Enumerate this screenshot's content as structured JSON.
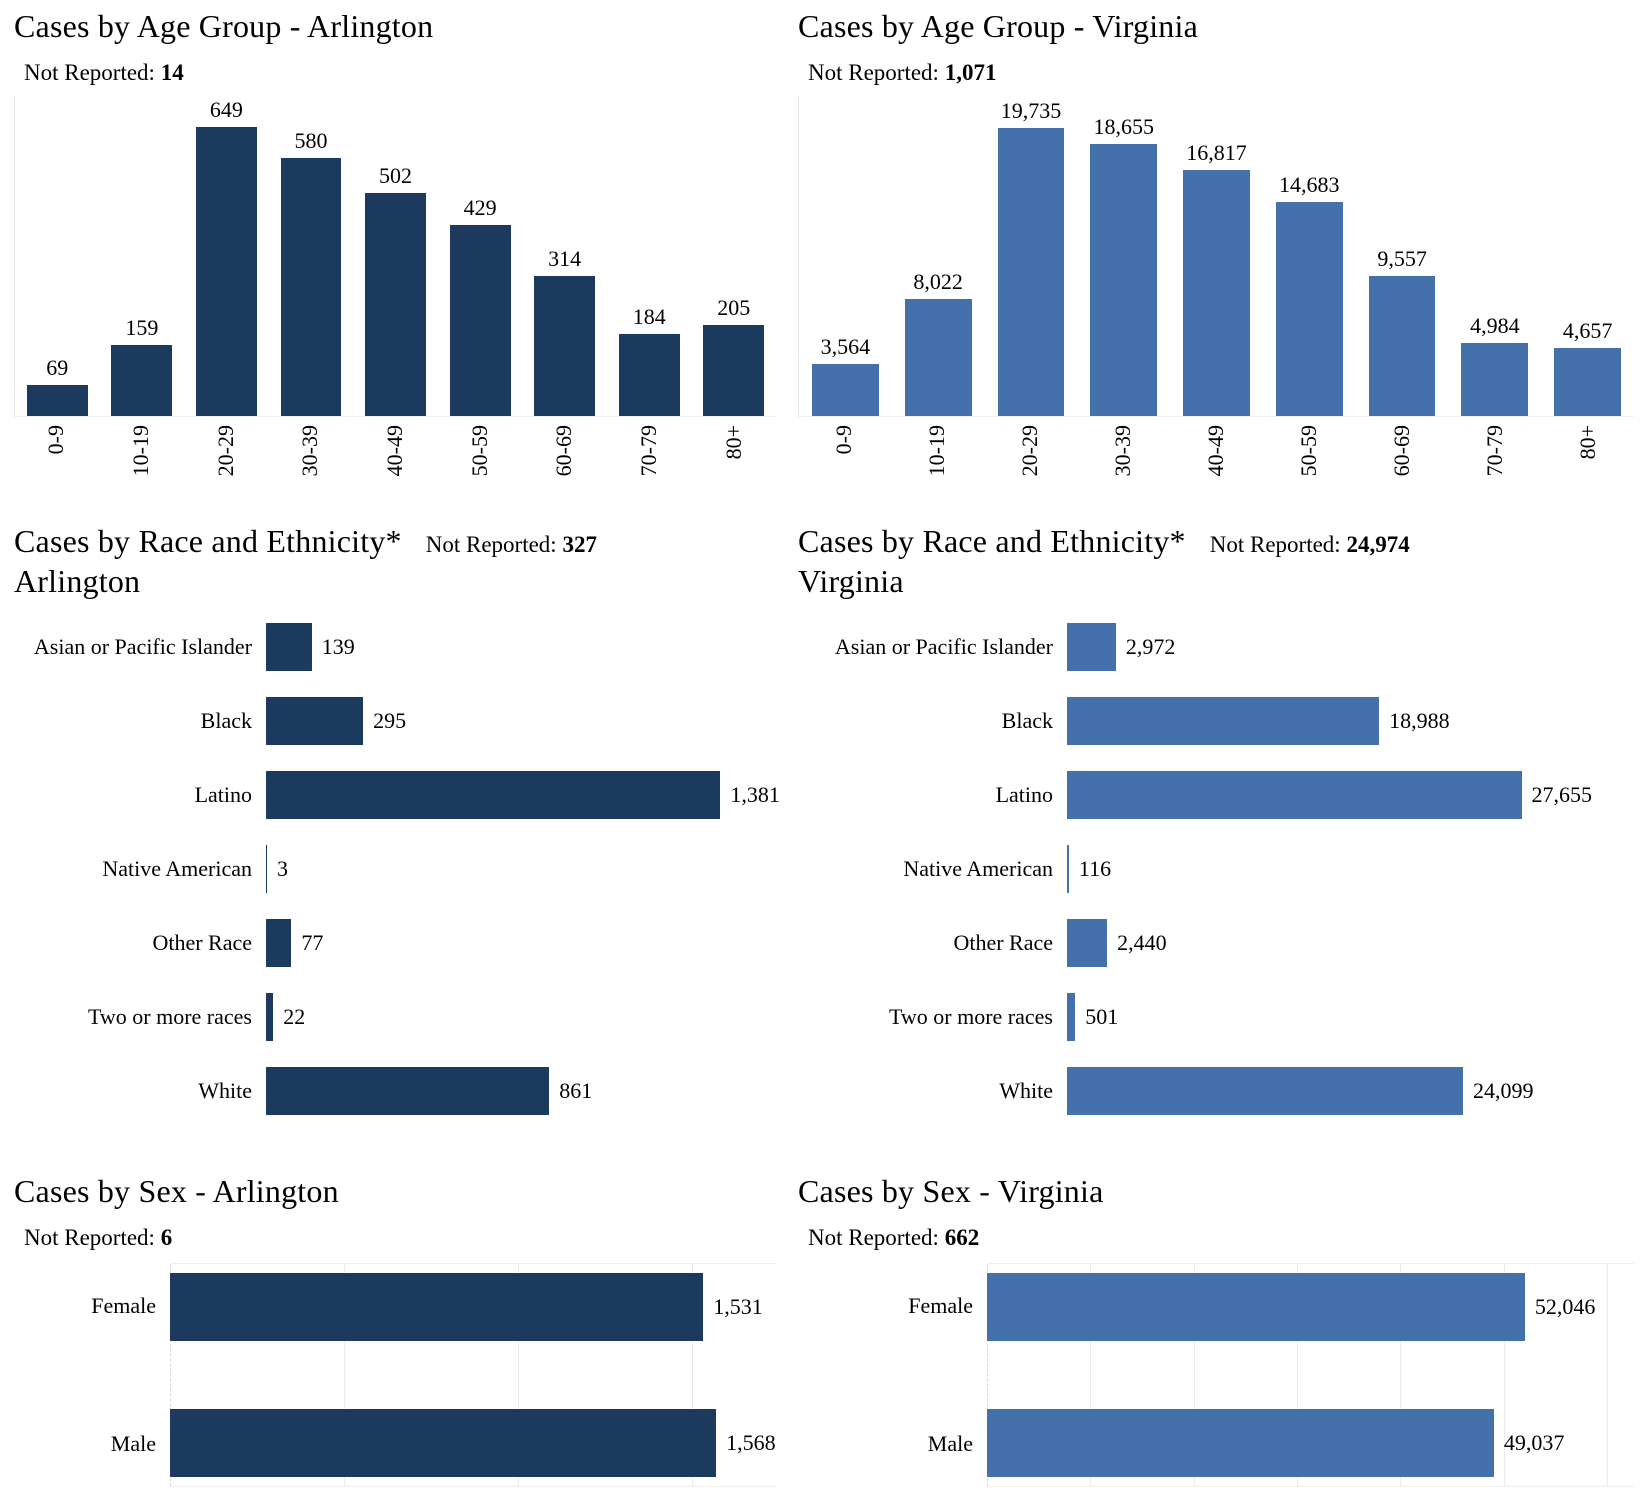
{
  "colors": {
    "arlington_navy": "#1b3a5e",
    "virginia_blue": "#4470ac"
  },
  "chart_data": [
    {
      "type": "bar",
      "orientation": "vertical",
      "title": "Cases by Age Group - Arlington",
      "not_reported_label": "Not Reported:",
      "not_reported_value": "14",
      "bar_color": "#1b3a5e",
      "grid": false,
      "categories": [
        "0-9",
        "10-19",
        "20-29",
        "30-39",
        "40-49",
        "50-59",
        "60-69",
        "70-79",
        "80+"
      ],
      "values": [
        69,
        159,
        649,
        580,
        502,
        429,
        314,
        184,
        205
      ],
      "value_labels": [
        "69",
        "159",
        "649",
        "580",
        "502",
        "429",
        "314",
        "184",
        "205"
      ],
      "ylim": [
        0,
        720
      ],
      "scale_max": 720
    },
    {
      "type": "bar",
      "orientation": "vertical",
      "title": "Cases by Age Group - Virginia",
      "not_reported_label": "Not Reported:",
      "not_reported_value": "1,071",
      "bar_color": "#4470ac",
      "grid": false,
      "categories": [
        "0-9",
        "10-19",
        "20-29",
        "30-39",
        "40-49",
        "50-59",
        "60-69",
        "70-79",
        "80+"
      ],
      "values": [
        3564,
        8022,
        19735,
        18655,
        16817,
        14683,
        9557,
        4984,
        4657
      ],
      "value_labels": [
        "3,564",
        "8,022",
        "19,735",
        "18,655",
        "16,817",
        "14,683",
        "9,557",
        "4,984",
        "4,657"
      ],
      "ylim": [
        0,
        21930
      ],
      "scale_max": 21930
    },
    {
      "type": "bar",
      "orientation": "horizontal",
      "title": "Cases by Race and Ethnicity*",
      "subtitle": "Arlington",
      "not_reported_label": "Not Reported:",
      "not_reported_value": "327",
      "bar_color": "#1b3a5e",
      "grid": false,
      "categories": [
        "Asian or Pacific Islander",
        "Black",
        "Latino",
        "Native American",
        "Other Race",
        "Two or more races",
        "White"
      ],
      "values": [
        139,
        295,
        1381,
        3,
        77,
        22,
        861
      ],
      "value_labels": [
        "139",
        "295",
        "1,381",
        "3",
        "77",
        "22",
        "861"
      ],
      "xlim": [
        0,
        1550
      ],
      "scale_max": 1550
    },
    {
      "type": "bar",
      "orientation": "horizontal",
      "title": "Cases by Race and Ethnicity*",
      "subtitle": "Virginia",
      "not_reported_label": "Not Reported:",
      "not_reported_value": "24,974",
      "bar_color": "#4470ac",
      "grid": false,
      "categories": [
        "Asian or Pacific Islander",
        "Black",
        "Latino",
        "Native American",
        "Other Race",
        "Two or more races",
        "White"
      ],
      "values": [
        2972,
        18988,
        27655,
        116,
        2440,
        501,
        24099
      ],
      "value_labels": [
        "2,972",
        "18,988",
        "27,655",
        "116",
        "2,440",
        "501",
        "24,099"
      ],
      "xlim": [
        0,
        34500
      ],
      "scale_max": 34500
    },
    {
      "type": "bar",
      "orientation": "horizontal",
      "title": "Cases by Sex - Arlington",
      "not_reported_label": "Not Reported:",
      "not_reported_value": "6",
      "bar_color": "#1b3a5e",
      "grid": true,
      "grid_interval": 500,
      "categories": [
        "Female",
        "Male"
      ],
      "values": [
        1531,
        1568
      ],
      "value_labels": [
        "1,531",
        "1,568"
      ],
      "xlim": [
        0,
        1740
      ],
      "scale_max": 1740
    },
    {
      "type": "bar",
      "orientation": "horizontal",
      "title": "Cases by Sex - Virginia",
      "not_reported_label": "Not Reported:",
      "not_reported_value": "662",
      "bar_color": "#4470ac",
      "grid": true,
      "grid_interval": 10000,
      "categories": [
        "Female",
        "Male"
      ],
      "values": [
        52046,
        49037
      ],
      "value_labels": [
        "52,046",
        "49,037"
      ],
      "xlim": [
        0,
        62600
      ],
      "scale_max": 62600
    }
  ]
}
